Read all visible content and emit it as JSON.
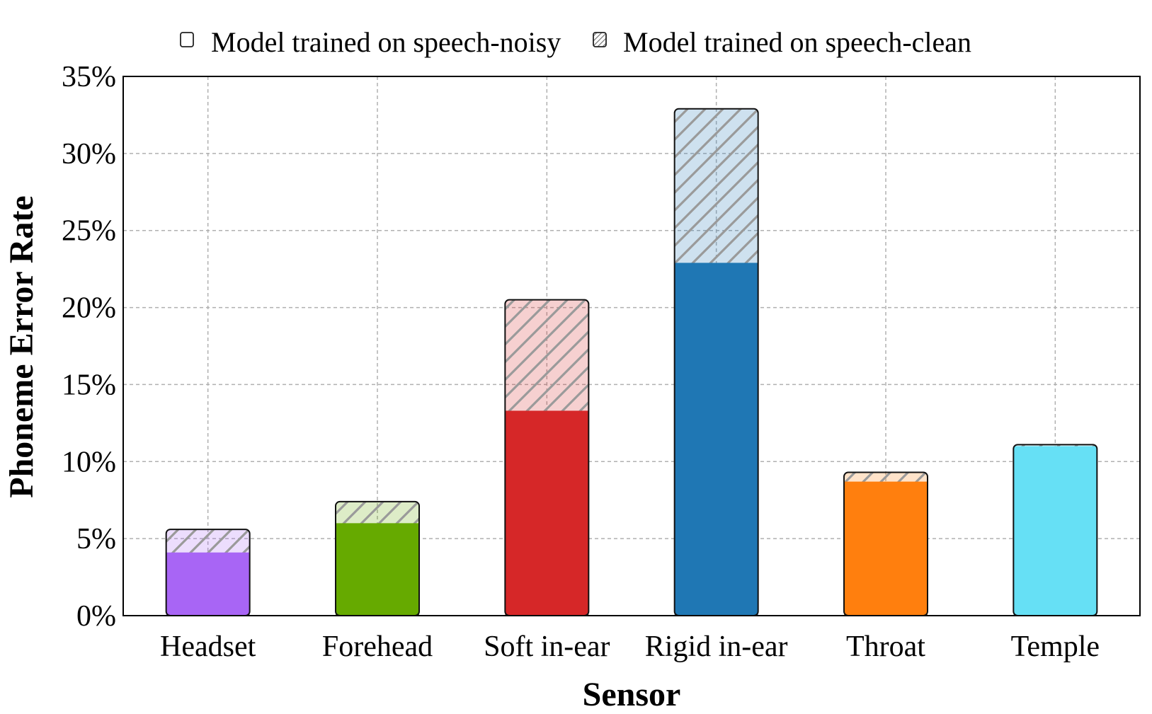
{
  "chart_data": {
    "type": "bar",
    "title": "",
    "xlabel": "Sensor",
    "ylabel": "Phoneme Error Rate",
    "ylim": [
      0,
      35
    ],
    "yticks": [
      0,
      5,
      10,
      15,
      20,
      25,
      30,
      35
    ],
    "ytick_labels": [
      "0%",
      "5%",
      "10%",
      "15%",
      "20%",
      "25%",
      "30%",
      "35%"
    ],
    "grid": true,
    "legend_position": "top",
    "categories": [
      "Headset",
      "Forehead",
      "Soft in-ear",
      "Rigid in-ear",
      "Throat",
      "Temple"
    ],
    "colors": [
      "#a865f5",
      "#66aa00",
      "#d62728",
      "#1f77b4",
      "#ff7f0e",
      "#66e0f5"
    ],
    "series": [
      {
        "name": "Model trained on speech-noisy",
        "style": "solid",
        "values": [
          4.1,
          6.0,
          13.3,
          22.9,
          8.7,
          11.0
        ]
      },
      {
        "name": "Model trained on speech-clean",
        "style": "hatched",
        "values": [
          5.6,
          7.4,
          20.5,
          32.9,
          9.3,
          11.1
        ]
      }
    ]
  }
}
